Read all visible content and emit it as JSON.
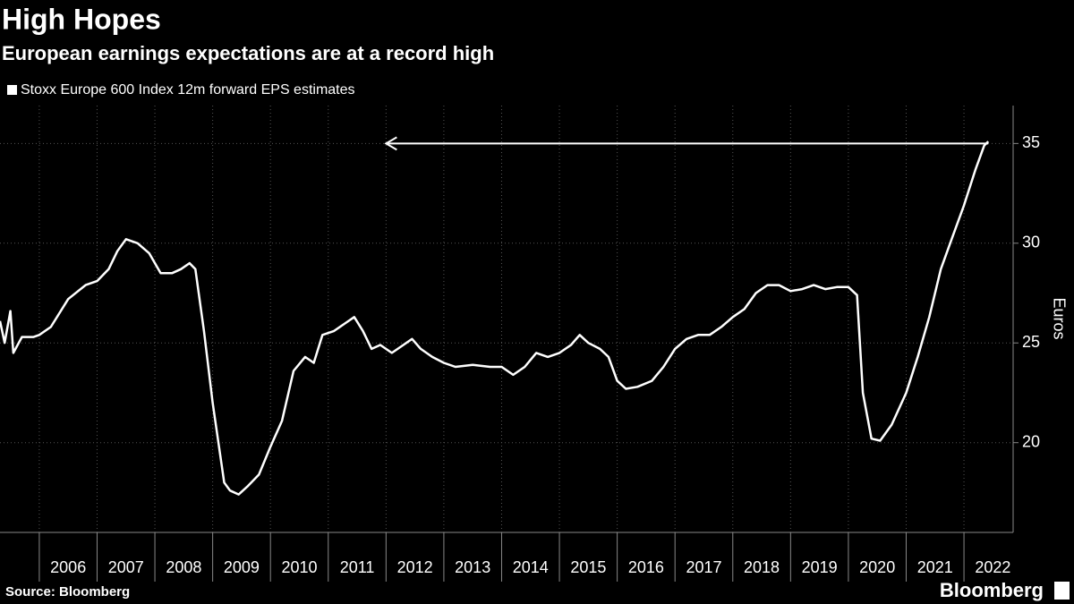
{
  "chart_data": {
    "type": "line",
    "title": "High Hopes",
    "subtitle": "European earnings expectations are at a record high",
    "y_label": "Euros",
    "source": "Source: Bloomberg",
    "brand": "Bloomberg",
    "grid": true,
    "legend_position": "top-left",
    "xlim": [
      2005.32,
      2022.82
    ],
    "xticks": [
      2006,
      2007,
      2008,
      2009,
      2010,
      2011,
      2012,
      2013,
      2014,
      2015,
      2016,
      2017,
      2018,
      2019,
      2020,
      2021,
      2022
    ],
    "ylim": [
      15.5,
      36.9
    ],
    "yticks": [
      20,
      25,
      30,
      35
    ],
    "annotation_arrow": {
      "x": [
        2022.42,
        2012.0
      ],
      "y": 35
    },
    "series": [
      {
        "name": "Stoxx Europe 600 Index 12m forward EPS estimates",
        "color": "#ffffff",
        "x": [
          2005.32,
          2005.4,
          2005.5,
          2005.55,
          2005.7,
          2005.9,
          2006.0,
          2006.2,
          2006.5,
          2006.8,
          2007.0,
          2007.2,
          2007.35,
          2007.5,
          2007.7,
          2007.9,
          2008.1,
          2008.3,
          2008.45,
          2008.6,
          2008.7,
          2008.85,
          2009.0,
          2009.2,
          2009.3,
          2009.45,
          2009.6,
          2009.8,
          2010.0,
          2010.2,
          2010.4,
          2010.6,
          2010.75,
          2010.9,
          2011.1,
          2011.3,
          2011.45,
          2011.6,
          2011.75,
          2011.9,
          2012.1,
          2012.3,
          2012.45,
          2012.6,
          2012.8,
          2013.0,
          2013.2,
          2013.5,
          2013.8,
          2014.0,
          2014.2,
          2014.4,
          2014.6,
          2014.8,
          2015.0,
          2015.2,
          2015.35,
          2015.5,
          2015.7,
          2015.85,
          2016.0,
          2016.15,
          2016.35,
          2016.6,
          2016.8,
          2017.0,
          2017.2,
          2017.4,
          2017.6,
          2017.8,
          2018.0,
          2018.2,
          2018.4,
          2018.6,
          2018.8,
          2019.0,
          2019.2,
          2019.4,
          2019.6,
          2019.8,
          2020.0,
          2020.15,
          2020.25,
          2020.4,
          2020.55,
          2020.75,
          2021.0,
          2021.2,
          2021.4,
          2021.6,
          2021.8,
          2022.0,
          2022.2,
          2022.35,
          2022.42
        ],
        "values": [
          26.1,
          25.0,
          26.6,
          24.5,
          25.3,
          25.3,
          25.4,
          25.8,
          27.2,
          27.9,
          28.1,
          28.7,
          29.6,
          30.2,
          30.0,
          29.5,
          28.5,
          28.5,
          28.7,
          29.0,
          28.7,
          25.6,
          22.0,
          18.0,
          17.6,
          17.4,
          17.8,
          18.4,
          19.8,
          21.1,
          23.6,
          24.3,
          24.0,
          25.4,
          25.6,
          26.0,
          26.3,
          25.6,
          24.7,
          24.9,
          24.5,
          24.9,
          25.2,
          24.7,
          24.3,
          24.0,
          23.8,
          23.9,
          23.8,
          23.8,
          23.4,
          23.8,
          24.5,
          24.3,
          24.5,
          24.9,
          25.4,
          25.0,
          24.7,
          24.3,
          23.1,
          22.7,
          22.8,
          23.1,
          23.8,
          24.7,
          25.2,
          25.4,
          25.4,
          25.8,
          26.3,
          26.7,
          27.5,
          27.9,
          27.9,
          27.6,
          27.7,
          27.9,
          27.7,
          27.8,
          27.8,
          27.4,
          22.5,
          20.2,
          20.1,
          20.9,
          22.5,
          24.3,
          26.3,
          28.7,
          30.3,
          31.9,
          33.7,
          34.9,
          35.1
        ]
      }
    ]
  }
}
